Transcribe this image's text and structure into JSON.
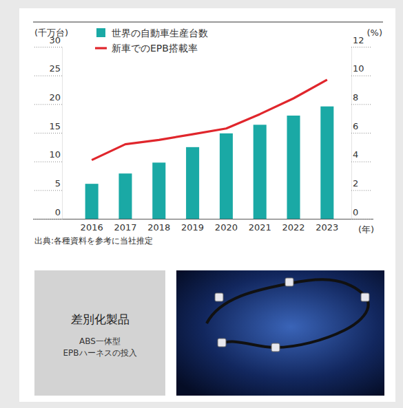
{
  "chart_data": {
    "type": "bar",
    "categories": [
      "2016",
      "2017",
      "2018",
      "2019",
      "2020",
      "2021",
      "2022",
      "2023"
    ],
    "series": [
      {
        "name": "世界の自動車生産台数",
        "type": "bar",
        "color": "#1aa9a5",
        "values": [
          6.1,
          7.9,
          9.8,
          12.5,
          14.9,
          16.4,
          18.0,
          19.6
        ]
      },
      {
        "name": "新車でのEPB搭載率",
        "type": "line",
        "axis": "y2",
        "color": "#e0262c",
        "values": [
          4.1,
          5.2,
          5.5,
          5.9,
          6.3,
          7.3,
          8.4,
          9.7
        ]
      }
    ],
    "ylim": [
      0,
      30
    ],
    "yticks": [
      0,
      5,
      10,
      15,
      20,
      25,
      30
    ],
    "y2lim": [
      0,
      12
    ],
    "y2ticks": [
      0,
      2,
      4,
      6,
      8,
      10,
      12
    ],
    "y_label": "(千万台)",
    "y2_label": "(%)",
    "x_label": "(年)",
    "source": "出典:各種資料を参考に当社推定",
    "legend": "top",
    "grid": false
  },
  "feature_panel": {
    "title": "差別化製品",
    "lines": [
      "ABS一体型",
      "EPBハーネスの投入"
    ]
  }
}
